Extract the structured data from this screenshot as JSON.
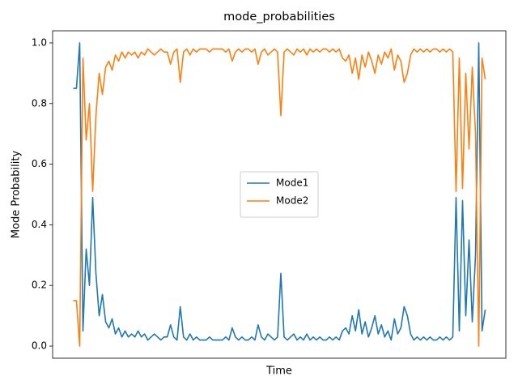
{
  "chart_data": {
    "type": "line",
    "title": "mode_probabilities",
    "xlabel": "Time",
    "ylabel": "Mode Probability",
    "ylim": [
      -0.04,
      1.04
    ],
    "yticks": [
      {
        "value": 0,
        "label": "0.0"
      },
      0.2,
      0.4,
      0.6,
      0.8,
      {
        "value": 1,
        "label": "1.0"
      }
    ],
    "legend": "center",
    "series": [
      {
        "name": "Mode1",
        "color": "#1f77b4",
        "values": [
          0.85,
          0.85,
          1.0,
          0.05,
          0.32,
          0.2,
          0.49,
          0.24,
          0.1,
          0.17,
          0.08,
          0.06,
          0.09,
          0.04,
          0.06,
          0.03,
          0.05,
          0.03,
          0.04,
          0.03,
          0.05,
          0.03,
          0.04,
          0.02,
          0.03,
          0.04,
          0.03,
          0.02,
          0.03,
          0.03,
          0.07,
          0.03,
          0.02,
          0.13,
          0.03,
          0.02,
          0.04,
          0.02,
          0.03,
          0.02,
          0.02,
          0.02,
          0.03,
          0.02,
          0.02,
          0.02,
          0.02,
          0.03,
          0.02,
          0.06,
          0.03,
          0.02,
          0.03,
          0.02,
          0.02,
          0.03,
          0.02,
          0.07,
          0.03,
          0.02,
          0.04,
          0.03,
          0.02,
          0.03,
          0.24,
          0.03,
          0.02,
          0.03,
          0.04,
          0.02,
          0.03,
          0.02,
          0.04,
          0.02,
          0.03,
          0.02,
          0.03,
          0.02,
          0.02,
          0.03,
          0.02,
          0.03,
          0.02,
          0.05,
          0.06,
          0.04,
          0.1,
          0.05,
          0.12,
          0.04,
          0.08,
          0.03,
          0.06,
          0.1,
          0.04,
          0.07,
          0.03,
          0.05,
          0.02,
          0.09,
          0.04,
          0.06,
          0.13,
          0.1,
          0.04,
          0.02,
          0.03,
          0.02,
          0.03,
          0.02,
          0.03,
          0.02,
          0.02,
          0.03,
          0.02,
          0.03,
          0.02,
          0.03,
          0.49,
          0.05,
          0.48,
          0.1,
          0.35,
          0.08,
          0.3,
          1.0,
          0.05,
          0.12
        ]
      },
      {
        "name": "Mode2",
        "color": "#ff7f0e",
        "values": [
          0.15,
          0.15,
          0,
          0.95,
          0.68,
          0.8,
          0.51,
          0.76,
          0.9,
          0.83,
          0.92,
          0.94,
          0.91,
          0.96,
          0.94,
          0.97,
          0.95,
          0.97,
          0.96,
          0.97,
          0.95,
          0.97,
          0.96,
          0.98,
          0.97,
          0.96,
          0.97,
          0.98,
          0.97,
          0.97,
          0.93,
          0.97,
          0.98,
          0.87,
          0.97,
          0.98,
          0.96,
          0.98,
          0.97,
          0.98,
          0.98,
          0.98,
          0.97,
          0.98,
          0.98,
          0.98,
          0.98,
          0.97,
          0.98,
          0.94,
          0.97,
          0.98,
          0.97,
          0.98,
          0.98,
          0.97,
          0.98,
          0.93,
          0.97,
          0.98,
          0.96,
          0.97,
          0.98,
          0.97,
          0.76,
          0.97,
          0.98,
          0.97,
          0.96,
          0.98,
          0.97,
          0.98,
          0.96,
          0.98,
          0.97,
          0.98,
          0.97,
          0.98,
          0.98,
          0.97,
          0.98,
          0.97,
          0.98,
          0.95,
          0.94,
          0.96,
          0.9,
          0.95,
          0.88,
          0.96,
          0.92,
          0.97,
          0.94,
          0.9,
          0.96,
          0.93,
          0.97,
          0.95,
          0.98,
          0.91,
          0.96,
          0.94,
          0.87,
          0.9,
          0.96,
          0.98,
          0.97,
          0.98,
          0.97,
          0.98,
          0.97,
          0.98,
          0.98,
          0.97,
          0.98,
          0.97,
          0.98,
          0.97,
          0.51,
          0.95,
          0.52,
          0.9,
          0.65,
          0.92,
          0.7,
          0,
          0.95,
          0.88
        ]
      }
    ]
  }
}
